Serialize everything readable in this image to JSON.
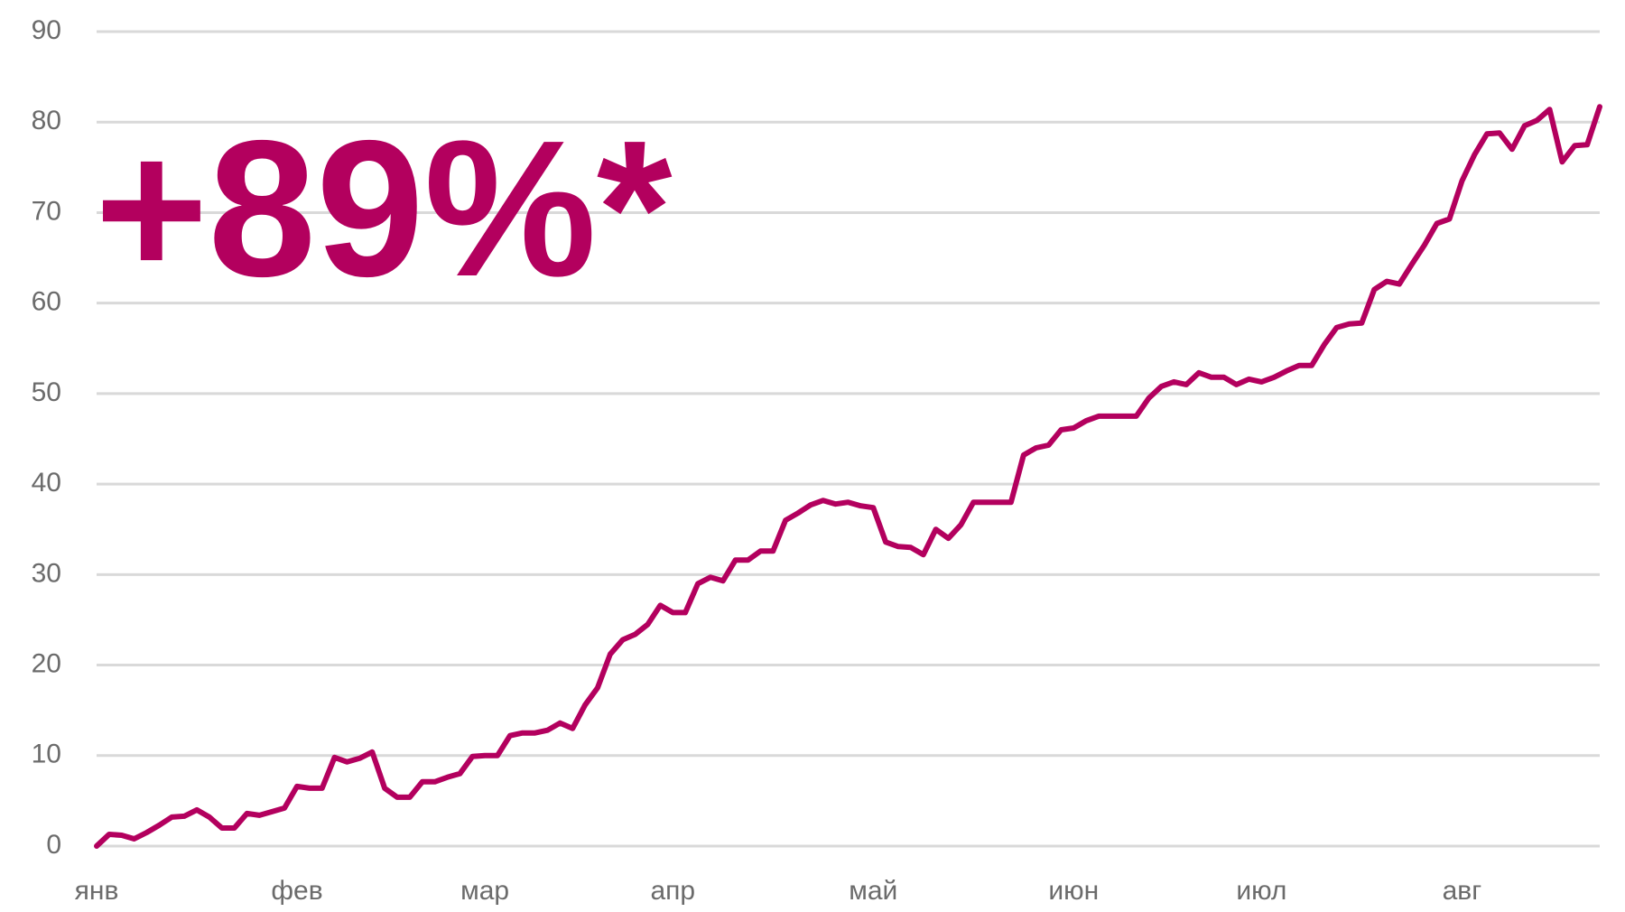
{
  "chart_data": {
    "type": "line",
    "annotation": "+89%*",
    "categories": [
      "янв",
      null,
      null,
      null,
      null,
      null,
      null,
      null,
      null,
      null,
      null,
      null,
      null,
      null,
      null,
      null,
      "фев",
      null,
      null,
      null,
      null,
      null,
      null,
      null,
      null,
      null,
      null,
      null,
      null,
      null,
      null,
      "мар",
      null,
      null,
      null,
      null,
      null,
      null,
      null,
      null,
      null,
      null,
      null,
      null,
      null,
      null,
      "апр",
      null,
      null,
      null,
      null,
      null,
      null,
      null,
      null,
      null,
      null,
      null,
      null,
      null,
      null,
      null,
      "май",
      null,
      null,
      null,
      null,
      null,
      null,
      null,
      null,
      null,
      null,
      null,
      null,
      null,
      null,
      null,
      "июн",
      null,
      null,
      null,
      null,
      null,
      null,
      null,
      null,
      null,
      null,
      null,
      null,
      null,
      null,
      "июл",
      null,
      null,
      null,
      null,
      null,
      null,
      null,
      null,
      null,
      null,
      null,
      null,
      null,
      null,
      null,
      "авг",
      null,
      null,
      null,
      null,
      null,
      null,
      null,
      null,
      null,
      null,
      null
    ],
    "series": [
      {
        "name": "line",
        "color": "#b3005e",
        "values": [
          0,
          1.3,
          1.2,
          0.8,
          1.5,
          2.3,
          3.2,
          3.3,
          4,
          3.2,
          2,
          2,
          3.6,
          3.4,
          3.8,
          4.2,
          6.6,
          6.4,
          6.4,
          9.8,
          9.3,
          9.7,
          10.4,
          6.4,
          5.4,
          5.4,
          7.1,
          7.1,
          7.6,
          8,
          9.9,
          10,
          10,
          12.2,
          12.5,
          12.5,
          12.8,
          13.6,
          13,
          15.6,
          17.5,
          21.2,
          22.8,
          23.4,
          24.5,
          26.6,
          25.8,
          25.8,
          29,
          29.7,
          29.3,
          31.6,
          31.6,
          32.6,
          32.6,
          36,
          36.8,
          37.7,
          38.2,
          37.8,
          38,
          37.6,
          37.4,
          33.6,
          33.1,
          33,
          32.2,
          35,
          34,
          35.5,
          38,
          38,
          38,
          38,
          43.2,
          44,
          44.3,
          46,
          46.2,
          47,
          47.5,
          47.5,
          47.5,
          47.5,
          49.5,
          50.8,
          51.3,
          51,
          52.3,
          51.8,
          51.8,
          51,
          51.6,
          51.3,
          51.8,
          52.5,
          53.1,
          53.1,
          55.4,
          57.3,
          57.7,
          57.8,
          61.5,
          62.4,
          62.1,
          64.3,
          66.4,
          68.8,
          69.3,
          73.5,
          76.4,
          78.7,
          78.8,
          77,
          79.6,
          80.2,
          81.4,
          75.6,
          77.4,
          77.5,
          81.7
        ]
      }
    ],
    "ylim": [
      0,
      90
    ],
    "yticks": [
      0,
      10,
      20,
      30,
      40,
      50,
      60,
      70,
      80,
      90
    ],
    "grid": true
  }
}
